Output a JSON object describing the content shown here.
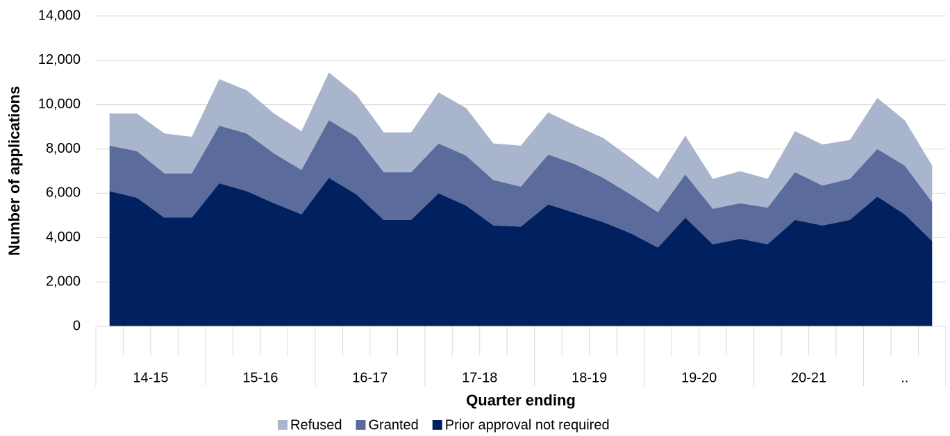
{
  "chart_data": {
    "type": "stacked_area",
    "x_axis_label": "Quarter ending",
    "y_axis_label": "Number of applications",
    "categories": [
      "14-15",
      "14-15",
      "14-15",
      "14-15",
      "15-16",
      "15-16",
      "15-16",
      "15-16",
      "16-17",
      "16-17",
      "16-17",
      "16-17",
      "17-18",
      "17-18",
      "17-18",
      "17-18",
      "18-19",
      "18-19",
      "18-19",
      "18-19",
      "19-20",
      "19-20",
      "19-20",
      "19-20",
      "20-21",
      "20-21",
      "20-21",
      "20-21",
      "..",
      "..",
      ".."
    ],
    "series": [
      {
        "name": "Refused",
        "color": "#a9b4cd",
        "values": [
          1450,
          1700,
          1800,
          1650,
          2100,
          1950,
          1800,
          1750,
          2150,
          1900,
          1800,
          1800,
          2300,
          2150,
          1650,
          1850,
          1900,
          1750,
          1800,
          1650,
          1500,
          1750,
          1350,
          1450,
          1300,
          1850,
          1850,
          1750,
          2300,
          2050,
          1650
        ]
      },
      {
        "name": "Granted",
        "color": "#5a6b9c",
        "values": [
          2050,
          2100,
          2000,
          2000,
          2600,
          2600,
          2250,
          2000,
          2600,
          2600,
          2150,
          2150,
          2250,
          2250,
          2050,
          1800,
          2250,
          2200,
          2000,
          1750,
          1600,
          1950,
          1600,
          1600,
          1650,
          2150,
          1800,
          1850,
          2150,
          2200,
          1750
        ]
      },
      {
        "name": "Prior approval not required",
        "color": "#002060",
        "values": [
          6100,
          5800,
          4900,
          4900,
          6450,
          6100,
          5550,
          5050,
          6700,
          5950,
          4800,
          4800,
          6000,
          5450,
          4550,
          4500,
          5500,
          5100,
          4700,
          4200,
          3550,
          4900,
          3700,
          3950,
          3700,
          4800,
          4550,
          4800,
          5850,
          5050,
          3850
        ]
      }
    ],
    "ylim": [
      0,
      14000
    ],
    "yticks": [
      0,
      {
        "value": 2000,
        "label": "2,000"
      },
      {
        "value": 4000,
        "label": "4,000"
      },
      {
        "value": 6000,
        "label": "6,000"
      },
      {
        "value": 8000,
        "label": "8,000"
      },
      {
        "value": 10000,
        "label": "10,000"
      },
      {
        "value": 12000,
        "label": "12,000"
      },
      {
        "value": 14000,
        "label": "14,000"
      }
    ],
    "grid": true,
    "legend": "bottom"
  }
}
